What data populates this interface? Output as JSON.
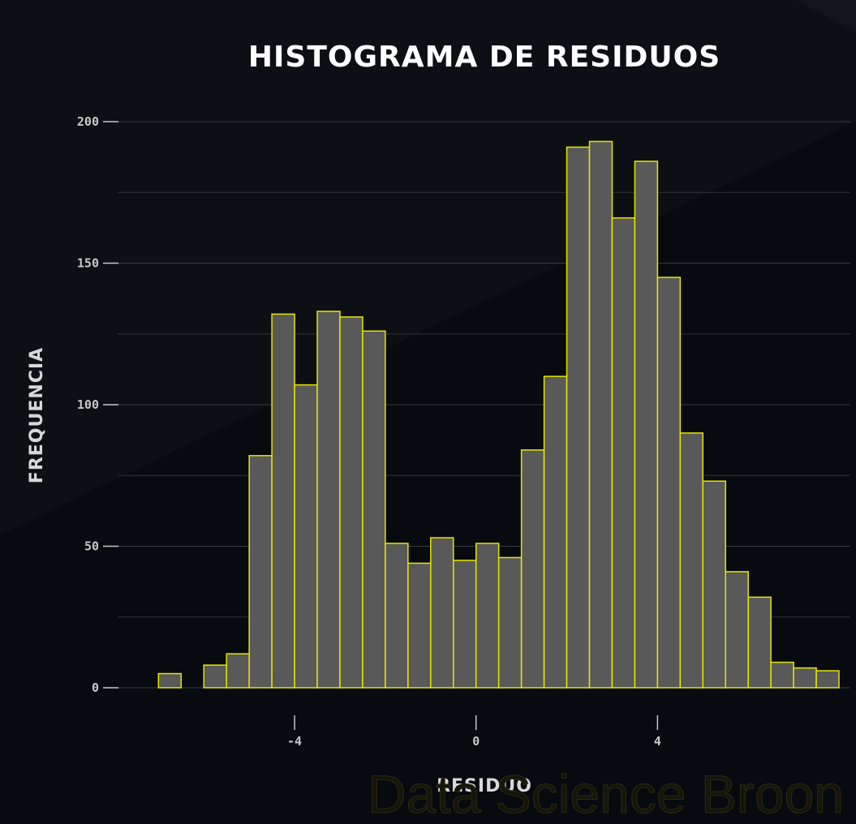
{
  "chart_data": {
    "type": "bar",
    "title": "HISTOGRAMA DE RESIDUOS",
    "xlabel": "RESIDUO",
    "ylabel": "FREQUENCIA",
    "bins": [
      {
        "x0": -7.0,
        "x1": -6.5,
        "count": 5
      },
      {
        "x0": -6.5,
        "x1": -6.0,
        "count": 0
      },
      {
        "x0": -6.0,
        "x1": -5.5,
        "count": 8
      },
      {
        "x0": -5.5,
        "x1": -5.0,
        "count": 12
      },
      {
        "x0": -5.0,
        "x1": -4.5,
        "count": 82
      },
      {
        "x0": -4.5,
        "x1": -4.0,
        "count": 132
      },
      {
        "x0": -4.0,
        "x1": -3.5,
        "count": 107
      },
      {
        "x0": -3.5,
        "x1": -3.0,
        "count": 133
      },
      {
        "x0": -3.0,
        "x1": -2.5,
        "count": 131
      },
      {
        "x0": -2.5,
        "x1": -2.0,
        "count": 126
      },
      {
        "x0": -2.0,
        "x1": -1.5,
        "count": 51
      },
      {
        "x0": -1.5,
        "x1": -1.0,
        "count": 44
      },
      {
        "x0": -1.0,
        "x1": -0.5,
        "count": 53
      },
      {
        "x0": -0.5,
        "x1": 0.0,
        "count": 45
      },
      {
        "x0": 0.0,
        "x1": 0.5,
        "count": 51
      },
      {
        "x0": 0.5,
        "x1": 1.0,
        "count": 46
      },
      {
        "x0": 1.0,
        "x1": 1.5,
        "count": 84
      },
      {
        "x0": 1.5,
        "x1": 2.0,
        "count": 110
      },
      {
        "x0": 2.0,
        "x1": 2.5,
        "count": 191
      },
      {
        "x0": 2.5,
        "x1": 3.0,
        "count": 193
      },
      {
        "x0": 3.0,
        "x1": 3.5,
        "count": 166
      },
      {
        "x0": 3.5,
        "x1": 4.0,
        "count": 186
      },
      {
        "x0": 4.0,
        "x1": 4.5,
        "count": 145
      },
      {
        "x0": 4.5,
        "x1": 5.0,
        "count": 90
      },
      {
        "x0": 5.0,
        "x1": 5.5,
        "count": 73
      },
      {
        "x0": 5.5,
        "x1": 6.0,
        "count": 41
      },
      {
        "x0": 6.0,
        "x1": 6.5,
        "count": 32
      },
      {
        "x0": 6.5,
        "x1": 7.0,
        "count": 9
      },
      {
        "x0": 7.0,
        "x1": 7.5,
        "count": 7
      },
      {
        "x0": 7.5,
        "x1": 8.0,
        "count": 6
      }
    ],
    "xticks": [
      -4,
      0,
      4
    ],
    "xtick_labels": [
      "-4",
      "0",
      "4"
    ],
    "yticks": [
      0,
      50,
      100,
      150,
      200
    ],
    "ytick_labels": [
      "0",
      "50",
      "100",
      "150",
      "200"
    ],
    "ylim": [
      0,
      200
    ],
    "xlim": [
      -7.9,
      8.25
    ],
    "grid": true,
    "bar_fill": "#595959",
    "bar_stroke": "#e6e600",
    "grid_color": "#3a3d42"
  },
  "watermark": "Data Science Broon",
  "colors": {
    "background": "#070a0e",
    "band": "#0d1014",
    "title": "#ffffff",
    "axis_text": "#c8c8c8"
  }
}
